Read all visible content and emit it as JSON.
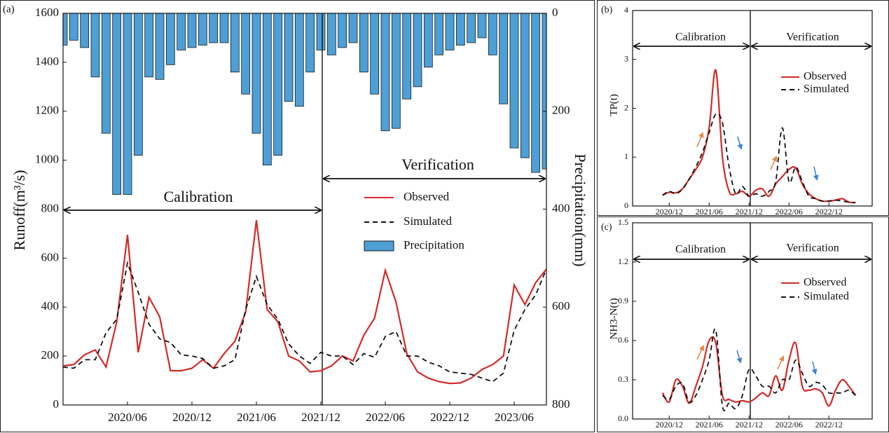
{
  "chart_data": [
    {
      "type": "bar_line",
      "panel_label": "(a)",
      "ylabel": "Runoff(m³/s)",
      "y2label": "Precipitation(mm)",
      "annotations": [
        "Calibration",
        "Verification"
      ],
      "categories": [
        null,
        null,
        null,
        null,
        null,
        null,
        "2020/06",
        null,
        null,
        null,
        null,
        null,
        "2020/12",
        null,
        null,
        null,
        null,
        null,
        "2021/06",
        null,
        null,
        null,
        null,
        null,
        "2021/12",
        null,
        null,
        null,
        null,
        null,
        "2022/06",
        null,
        null,
        null,
        null,
        null,
        "2022/12",
        null,
        null,
        null,
        null,
        null,
        "2023/06",
        null,
        null,
        null
      ],
      "ylim": [
        0,
        1600
      ],
      "yticks": [
        0,
        200,
        400,
        600,
        800,
        1000,
        1200,
        1400,
        1600
      ],
      "y2lim": [
        800,
        0
      ],
      "y2ticks": [
        0,
        200,
        400,
        600,
        800
      ],
      "series": [
        {
          "name": "Observed",
          "type": "line",
          "color": "#d42a2a",
          "line_style": "solid",
          "values": [
            160,
            165,
            205,
            225,
            155,
            340,
            695,
            215,
            440,
            360,
            140,
            140,
            150,
            185,
            150,
            210,
            260,
            380,
            755,
            390,
            340,
            200,
            180,
            135,
            140,
            160,
            200,
            180,
            285,
            355,
            550,
            420,
            210,
            135,
            110,
            95,
            88,
            90,
            110,
            145,
            165,
            200,
            490,
            410,
            500,
            555
          ]
        },
        {
          "name": "Simulated",
          "type": "line",
          "color": "#111111",
          "line_style": "dashed",
          "values": [
            155,
            150,
            185,
            185,
            295,
            350,
            580,
            460,
            330,
            270,
            255,
            205,
            200,
            190,
            150,
            160,
            185,
            390,
            525,
            410,
            350,
            250,
            200,
            170,
            215,
            200,
            200,
            165,
            210,
            195,
            280,
            300,
            200,
            200,
            175,
            160,
            135,
            130,
            125,
            110,
            95,
            130,
            305,
            390,
            450,
            555
          ]
        },
        {
          "name": "Precipitation",
          "type": "bar",
          "axis": "y2",
          "color": "#4d9fd6",
          "values": [
            65,
            55,
            70,
            130,
            245,
            370,
            370,
            290,
            130,
            135,
            105,
            75,
            70,
            65,
            60,
            60,
            120,
            165,
            245,
            310,
            290,
            180,
            190,
            120,
            75,
            85,
            70,
            60,
            120,
            165,
            240,
            235,
            175,
            150,
            110,
            85,
            75,
            65,
            60,
            50,
            85,
            185,
            275,
            295,
            325,
            318
          ]
        }
      ]
    },
    {
      "type": "line",
      "panel_label": "(b)",
      "ylabel": "TP(t)",
      "annotations": [
        "Calibration",
        "Verification"
      ],
      "categories": [
        null,
        null,
        null,
        null,
        null,
        "2020/12",
        null,
        null,
        null,
        null,
        null,
        "2021/06",
        null,
        null,
        null,
        null,
        null,
        "2021/12",
        null,
        null,
        null,
        null,
        null,
        "2022/06",
        null,
        null,
        null,
        null,
        null,
        "2022/12",
        null,
        null,
        null,
        null,
        null,
        null
      ],
      "ylim": [
        0,
        4
      ],
      "yticks": [
        0,
        1,
        2,
        3,
        4
      ],
      "series": [
        {
          "name": "Observed",
          "color": "#d42a2a",
          "line_style": "solid",
          "values": [
            null,
            null,
            null,
            null,
            0.22,
            0.28,
            0.27,
            0.35,
            0.55,
            0.75,
            1.0,
            1.6,
            2.78,
            1.0,
            0.3,
            0.25,
            0.3,
            0.2,
            0.32,
            0.35,
            0.2,
            0.45,
            0.6,
            0.75,
            0.78,
            0.45,
            0.25,
            0.15,
            0.1,
            0.1,
            0.12,
            0.15,
            0.08,
            0.07,
            null,
            null
          ]
        },
        {
          "name": "Simulated",
          "color": "#111111",
          "line_style": "dashed",
          "values": [
            null,
            null,
            null,
            null,
            0.22,
            0.3,
            0.25,
            0.35,
            0.55,
            0.8,
            1.1,
            1.5,
            1.88,
            1.7,
            0.8,
            0.25,
            0.4,
            0.2,
            0.25,
            0.2,
            0.3,
            0.5,
            1.6,
            0.5,
            0.8,
            0.5,
            0.2,
            0.15,
            0.1,
            0.1,
            0.12,
            0.1,
            0.08,
            0.07,
            null,
            null
          ]
        }
      ]
    },
    {
      "type": "line",
      "panel_label": "(c)",
      "ylabel": "NH3-N(t)",
      "annotations": [
        "Calibration",
        "Verification"
      ],
      "categories": [
        null,
        null,
        null,
        null,
        null,
        "2020/12",
        null,
        null,
        null,
        null,
        null,
        "2021/06",
        null,
        null,
        null,
        null,
        null,
        "2021/12",
        null,
        null,
        null,
        null,
        null,
        "2022/06",
        null,
        null,
        null,
        null,
        null,
        "2022/12",
        null,
        null,
        null,
        null,
        null,
        null
      ],
      "ylim": [
        0,
        1.5
      ],
      "yticks": [
        {
          "value": 0,
          "label": "0.0"
        },
        0.3,
        0.6,
        0.9,
        1.2,
        1.5
      ],
      "series": [
        {
          "name": "Observed",
          "color": "#d42a2a",
          "line_style": "solid",
          "values": [
            null,
            null,
            null,
            null,
            0.2,
            0.13,
            0.3,
            0.25,
            0.12,
            0.25,
            0.4,
            0.6,
            0.58,
            0.18,
            0.15,
            0.13,
            0.14,
            0.13,
            0.16,
            0.2,
            0.18,
            0.33,
            0.22,
            0.45,
            0.58,
            0.25,
            0.22,
            0.23,
            0.2,
            0.1,
            0.22,
            0.3,
            0.25,
            0.18,
            null,
            null
          ]
        },
        {
          "name": "Simulated",
          "color": "#111111",
          "line_style": "dashed",
          "values": [
            null,
            null,
            null,
            null,
            0.18,
            0.15,
            0.25,
            0.27,
            0.13,
            0.18,
            0.3,
            0.45,
            0.68,
            0.1,
            0.12,
            0.08,
            0.18,
            0.38,
            0.33,
            0.25,
            0.25,
            0.2,
            0.3,
            0.3,
            0.45,
            0.35,
            0.25,
            0.28,
            0.26,
            0.2,
            0.2,
            0.2,
            0.22,
            0.18,
            null,
            null
          ]
        }
      ]
    }
  ]
}
